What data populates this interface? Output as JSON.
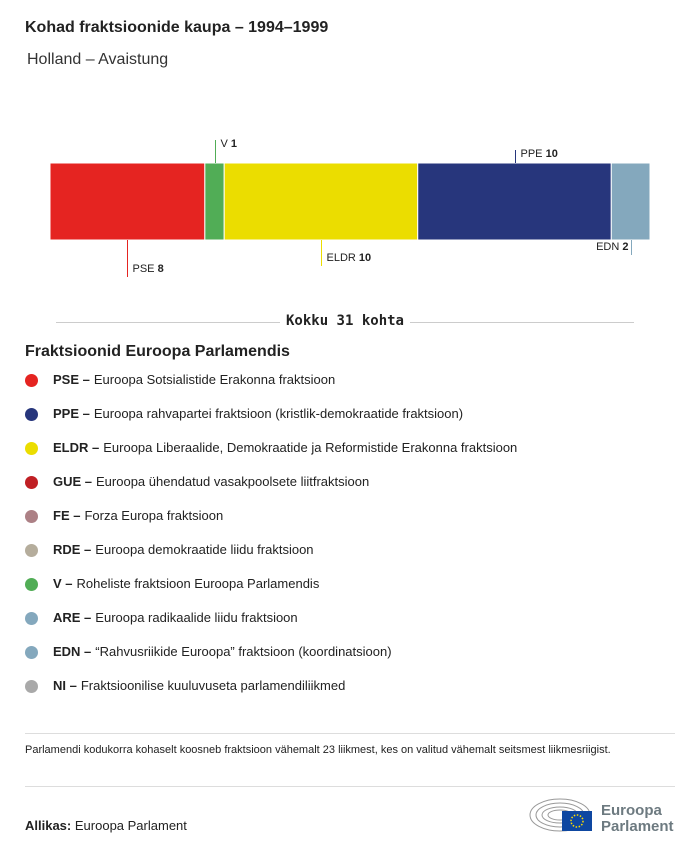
{
  "header": {
    "title": "Kohad fraktsioonide kaupa – 1994–1999",
    "subtitle": "Holland – Avaistung"
  },
  "chart_data": {
    "type": "bar",
    "orientation": "stacked-horizontal",
    "categories": [
      "PSE",
      "V",
      "ELDR",
      "PPE",
      "EDN"
    ],
    "values": [
      8,
      1,
      10,
      10,
      2
    ],
    "colors": [
      "#e52421",
      "#51ad56",
      "#ebdd00",
      "#27367c",
      "#84a8bd"
    ],
    "total_label": "Kokku 31 kohta"
  },
  "legend": {
    "title": "Fraktsioonid Euroopa Parlamendis",
    "items": [
      {
        "abbr": "PSE –",
        "text": "Euroopa Sotsialistide Erakonna fraktsioon",
        "color": "#e52421"
      },
      {
        "abbr": "PPE –",
        "text": "Euroopa rahvapartei fraktsioon (kristlik-demokraatide fraktsioon)",
        "color": "#27367c"
      },
      {
        "abbr": "ELDR –",
        "text": "Euroopa Liberaalide, Demokraatide ja Reformistide Erakonna fraktsioon",
        "color": "#ebdd00"
      },
      {
        "abbr": "GUE –",
        "text": "Euroopa ühendatud vasakpoolsete liitfraktsioon",
        "color": "#c01f24"
      },
      {
        "abbr": "FE –",
        "text": "Forza Europa fraktsioon",
        "color": "#ac8085"
      },
      {
        "abbr": "RDE –",
        "text": "Euroopa demokraatide liidu fraktsioon",
        "color": "#b5ad9c"
      },
      {
        "abbr": "V –",
        "text": "Roheliste fraktsioon Euroopa Parlamendis",
        "color": "#51ad56"
      },
      {
        "abbr": "ARE –",
        "text": "Euroopa radikaalide liidu fraktsioon",
        "color": "#84a8bd"
      },
      {
        "abbr": "EDN –",
        "text": "“Rahvusriikide Euroopa” fraktsioon (koordinatsioon)",
        "color": "#84a8bd"
      },
      {
        "abbr": "NI –",
        "text": "Fraktsioonilise kuuluvuseta parlamendiliikmed",
        "color": "#a9a9a9"
      }
    ]
  },
  "note": "Parlamendi kodukorra kohaselt koosneb fraktsioon vähemalt 23 liikmest, kes on valitud vähemalt seitsmest liikmesriigist.",
  "source": {
    "label": "Allikas:",
    "value": "Euroopa Parlament"
  },
  "logo": {
    "text1": "Euroopa",
    "text2": "Parlament"
  }
}
